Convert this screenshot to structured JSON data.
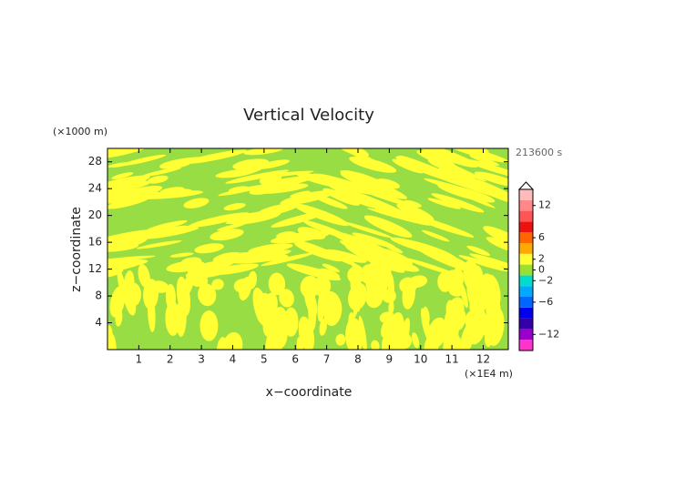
{
  "chart_data": {
    "type": "contour",
    "title": "Vertical Velocity",
    "xlabel": "x−coordinate",
    "ylabel": "z−coordinate",
    "x_unit": "(×1E4 m)",
    "y_unit": "(×1000 m)",
    "time_label": "213600 s",
    "xlim": [
      0,
      12.8
    ],
    "xticks": [
      1,
      2,
      3,
      4,
      5,
      6,
      7,
      8,
      9,
      10,
      11,
      12
    ],
    "ylim": [
      0,
      30
    ],
    "yticks": [
      4,
      8,
      12,
      16,
      20,
      24,
      28
    ],
    "colorbar": {
      "clim": [
        -15,
        15
      ],
      "levels": [
        -15,
        -13,
        -11,
        -9,
        -7,
        -5,
        -3,
        -1,
        1,
        3,
        5,
        7,
        9,
        11,
        13,
        15
      ],
      "colors": [
        "#ff33cc",
        "#9900cc",
        "#3300aa",
        "#0000ee",
        "#0066ff",
        "#00aaff",
        "#00ddcc",
        "#99e033",
        "#ffff33",
        "#ffaa00",
        "#ff6600",
        "#ee1111",
        "#ff5555",
        "#ff8888",
        "#ffbbbb"
      ],
      "ticks": [
        12,
        6,
        2,
        0,
        {
          "value": -2,
          "label": "−2"
        },
        {
          "value": -6,
          "label": "−6"
        },
        {
          "value": -12,
          "label": "−12"
        }
      ]
    }
  }
}
